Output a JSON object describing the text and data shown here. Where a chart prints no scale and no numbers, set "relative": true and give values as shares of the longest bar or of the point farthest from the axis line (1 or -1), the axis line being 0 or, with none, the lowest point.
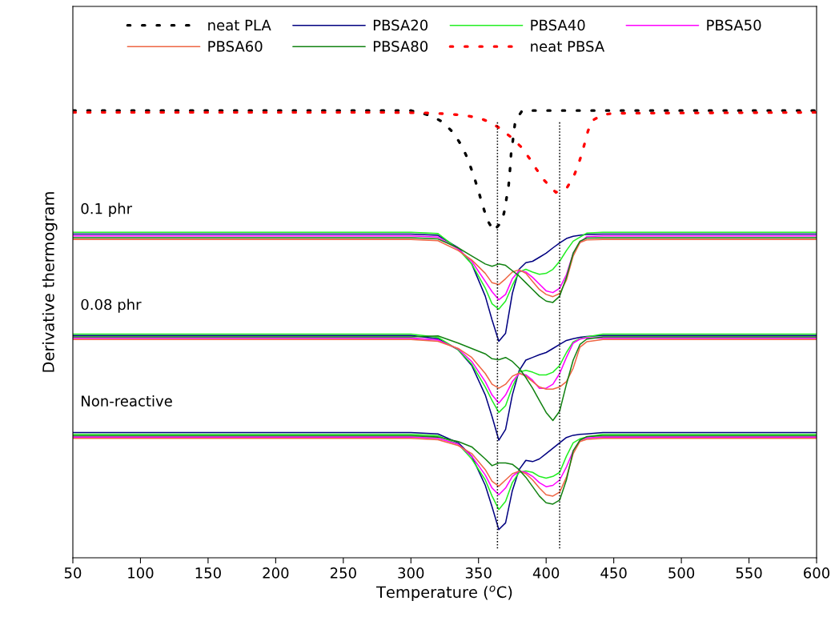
{
  "chart_data": {
    "type": "line",
    "relative": true,
    "xlabel": "Temperature ($^{o}$C)",
    "ylabel": "Derivative thermogram",
    "xlim": [
      50,
      600
    ],
    "xticks": [
      50,
      100,
      150,
      200,
      250,
      300,
      350,
      400,
      450,
      500,
      550,
      600
    ],
    "grid": false,
    "legend": "top",
    "marker": "none",
    "tick_labels": "x",
    "x": [
      50,
      300,
      320,
      335,
      345,
      355,
      360,
      365,
      370,
      375,
      380,
      385,
      390,
      395,
      400,
      405,
      410,
      415,
      420,
      425,
      430,
      442,
      460,
      600
    ],
    "annotations": [
      "0.1 phr",
      "0.08 phr",
      "Non-reactive"
    ],
    "ref_lines": [
      {
        "axis": "x",
        "value": 364,
        "color": "#000000",
        "line_style": "dotted"
      },
      {
        "axis": "x",
        "value": 410,
        "color": "#000000",
        "line_style": "dotted"
      }
    ],
    "series": [
      {
        "name": "neat PLA",
        "color": "#000000",
        "line_style": "dotted",
        "x": [
          50,
          300,
          307,
          315.4,
          323.7,
          331.2,
          336.6,
          340.7,
          343.9,
          346.8,
          349.4,
          351.8,
          354.3,
          357.3,
          361.2,
          367.3,
          369.3,
          370.7,
          372.1,
          372.9,
          373.5,
          374.1,
          375.2,
          376.2,
          377.2,
          382.3,
          600
        ],
        "values": [
          1.0,
          1.0,
          0.995,
          0.988,
          0.974,
          0.951,
          0.926,
          0.901,
          0.876,
          0.851,
          0.826,
          0.801,
          0.776,
          0.751,
          0.731,
          0.752,
          0.777,
          0.804,
          0.828,
          0.853,
          0.877,
          0.904,
          0.928,
          0.953,
          0.977,
          1.0,
          1.0
        ]
      },
      {
        "name": "PBSA20",
        "color": "#000080",
        "values": [
          0.724,
          0.724,
          0.721,
          0.693,
          0.657,
          0.585,
          0.532,
          0.484,
          0.502,
          0.591,
          0.645,
          0.66,
          0.663,
          0.672,
          0.681,
          0.693,
          0.704,
          0.714,
          0.719,
          0.721,
          0.723,
          0.724,
          0.724,
          0.724
        ]
      },
      {
        "name": "PBSA40",
        "color": "#22ee22",
        "values": [
          0.728,
          0.728,
          0.725,
          0.69,
          0.657,
          0.603,
          0.568,
          0.556,
          0.574,
          0.609,
          0.639,
          0.645,
          0.639,
          0.634,
          0.636,
          0.645,
          0.663,
          0.687,
          0.708,
          0.717,
          0.726,
          0.728,
          0.728,
          0.728
        ]
      },
      {
        "name": "PBSA50",
        "color": "#ff00ff",
        "values": [
          0.72,
          0.72,
          0.717,
          0.69,
          0.663,
          0.618,
          0.595,
          0.577,
          0.589,
          0.624,
          0.642,
          0.639,
          0.627,
          0.612,
          0.597,
          0.593,
          0.603,
          0.633,
          0.681,
          0.705,
          0.718,
          0.72,
          0.72,
          0.72
        ]
      },
      {
        "name": "PBSA60",
        "color": "#ee6644",
        "values": [
          0.712,
          0.712,
          0.709,
          0.687,
          0.666,
          0.636,
          0.615,
          0.611,
          0.624,
          0.639,
          0.644,
          0.636,
          0.618,
          0.6,
          0.589,
          0.584,
          0.591,
          0.621,
          0.675,
          0.705,
          0.711,
          0.712,
          0.712,
          0.712
        ]
      },
      {
        "name": "PBSA80",
        "color": "#128212",
        "values": [
          0.716,
          0.716,
          0.713,
          0.693,
          0.675,
          0.657,
          0.652,
          0.657,
          0.654,
          0.642,
          0.63,
          0.615,
          0.6,
          0.585,
          0.574,
          0.571,
          0.585,
          0.627,
          0.681,
          0.708,
          0.715,
          0.716,
          0.716,
          0.716
        ]
      },
      {
        "name": "neat PBSA",
        "color": "#ff0000",
        "line_style": "dotted",
        "x": [
          50,
          280,
          308,
          316.9,
          325.3,
          333.2,
          341.9,
          350,
          358.5,
          366.6,
          374.2,
          381.4,
          387.5,
          392.8,
          398.3,
          407.2,
          415.5,
          420.4,
          423.6,
          426.4,
          428.7,
          430.9,
          434.2,
          442.1,
          450,
          600
        ],
        "values": [
          0.996,
          0.996,
          0.995,
          0.994,
          0.993,
          0.991,
          0.988,
          0.984,
          0.974,
          0.959,
          0.94,
          0.919,
          0.894,
          0.869,
          0.845,
          0.817,
          0.828,
          0.853,
          0.877,
          0.904,
          0.929,
          0.954,
          0.978,
          0.991,
          0.994,
          0.996
        ]
      },
      {
        "color": "#000080",
        "values": [
          0.497,
          0.497,
          0.49,
          0.465,
          0.43,
          0.364,
          0.316,
          0.263,
          0.287,
          0.364,
          0.418,
          0.442,
          0.448,
          0.454,
          0.459,
          0.468,
          0.477,
          0.486,
          0.49,
          0.493,
          0.495,
          0.497,
          0.497,
          0.497
        ]
      },
      {
        "color": "#22ee22",
        "values": [
          0.5,
          0.5,
          0.493,
          0.465,
          0.433,
          0.382,
          0.352,
          0.325,
          0.34,
          0.382,
          0.415,
          0.419,
          0.415,
          0.409,
          0.409,
          0.415,
          0.43,
          0.459,
          0.483,
          0.49,
          0.494,
          0.5,
          0.5,
          0.5
        ]
      },
      {
        "color": "#ff00ff",
        "values": [
          0.491,
          0.491,
          0.487,
          0.467,
          0.439,
          0.394,
          0.364,
          0.346,
          0.364,
          0.394,
          0.412,
          0.409,
          0.397,
          0.379,
          0.379,
          0.388,
          0.412,
          0.448,
          0.48,
          0.489,
          0.492,
          0.491,
          0.491,
          0.491
        ]
      },
      {
        "color": "#ee6644",
        "values": [
          0.488,
          0.488,
          0.484,
          0.468,
          0.448,
          0.412,
          0.388,
          0.379,
          0.388,
          0.406,
          0.413,
          0.406,
          0.394,
          0.382,
          0.377,
          0.377,
          0.382,
          0.394,
          0.424,
          0.471,
          0.483,
          0.488,
          0.488,
          0.488
        ]
      },
      {
        "color": "#128212",
        "values": [
          0.494,
          0.494,
          0.496,
          0.48,
          0.468,
          0.456,
          0.445,
          0.443,
          0.448,
          0.439,
          0.424,
          0.403,
          0.379,
          0.352,
          0.325,
          0.307,
          0.328,
          0.388,
          0.442,
          0.477,
          0.489,
          0.494,
          0.494,
          0.494
        ]
      },
      {
        "color": "#000080",
        "values": [
          0.28,
          0.28,
          0.277,
          0.257,
          0.227,
          0.162,
          0.114,
          0.063,
          0.078,
          0.15,
          0.197,
          0.218,
          0.215,
          0.221,
          0.233,
          0.245,
          0.257,
          0.269,
          0.274,
          0.276,
          0.277,
          0.28,
          0.28,
          0.28
        ]
      },
      {
        "color": "#22ee22",
        "values": [
          0.276,
          0.276,
          0.273,
          0.254,
          0.221,
          0.174,
          0.138,
          0.108,
          0.126,
          0.168,
          0.191,
          0.194,
          0.191,
          0.182,
          0.178,
          0.182,
          0.191,
          0.227,
          0.257,
          0.266,
          0.27,
          0.276,
          0.276,
          0.276
        ]
      },
      {
        "color": "#ff00ff",
        "values": [
          0.27,
          0.27,
          0.267,
          0.254,
          0.227,
          0.185,
          0.156,
          0.141,
          0.156,
          0.182,
          0.194,
          0.191,
          0.182,
          0.168,
          0.159,
          0.162,
          0.174,
          0.203,
          0.239,
          0.263,
          0.268,
          0.27,
          0.27,
          0.27
        ]
      },
      {
        "color": "#ee6644",
        "values": [
          0.267,
          0.267,
          0.264,
          0.251,
          0.233,
          0.197,
          0.171,
          0.16,
          0.174,
          0.188,
          0.194,
          0.188,
          0.174,
          0.156,
          0.141,
          0.138,
          0.147,
          0.18,
          0.233,
          0.26,
          0.265,
          0.267,
          0.267,
          0.267
        ]
      },
      {
        "color": "#128212",
        "values": [
          0.273,
          0.273,
          0.27,
          0.26,
          0.248,
          0.221,
          0.206,
          0.212,
          0.212,
          0.209,
          0.197,
          0.18,
          0.159,
          0.138,
          0.123,
          0.12,
          0.129,
          0.174,
          0.239,
          0.263,
          0.271,
          0.273,
          0.273,
          0.273
        ]
      }
    ]
  }
}
